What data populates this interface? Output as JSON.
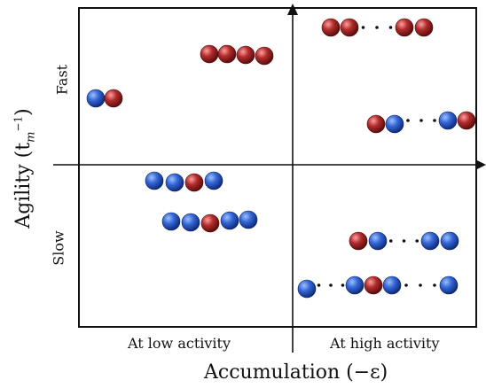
{
  "diagram": {
    "x_axis_title": "Accumulation (−ε)",
    "y_axis_title": "Agility (t",
    "y_axis_title_sub": "m",
    "y_axis_title_sup": "−1",
    "y_axis_title_close": ")",
    "x_categories": [
      "At low activity",
      "At high activity"
    ],
    "y_categories": [
      "Fast",
      "Slow"
    ],
    "colors": {
      "blue": "#2f5fd0",
      "red": "#b02a2a",
      "axis": "#111111"
    },
    "chains": [
      {
        "id": "fast-low-1",
        "quadrant": "fast-low",
        "beads": [
          "blue",
          "red"
        ]
      },
      {
        "id": "fast-low-2",
        "quadrant": "fast-low",
        "beads": [
          "red",
          "red",
          "red",
          "red"
        ]
      },
      {
        "id": "fast-high-1",
        "quadrant": "fast-high",
        "beads": [
          "red",
          "red",
          "...",
          "red",
          "red"
        ]
      },
      {
        "id": "fast-high-2",
        "quadrant": "fast-high",
        "beads": [
          "red",
          "blue",
          "...",
          "blue",
          "red"
        ]
      },
      {
        "id": "slow-low-1",
        "quadrant": "slow-low",
        "beads": [
          "blue",
          "blue",
          "red",
          "blue"
        ]
      },
      {
        "id": "slow-low-2",
        "quadrant": "slow-low",
        "beads": [
          "blue",
          "blue",
          "red",
          "blue",
          "blue"
        ]
      },
      {
        "id": "slow-high-1",
        "quadrant": "slow-high",
        "beads": [
          "red",
          "blue",
          "...",
          "blue",
          "blue"
        ]
      },
      {
        "id": "slow-high-2",
        "quadrant": "slow-high",
        "beads": [
          "blue",
          "...",
          "blue",
          "red",
          "blue",
          "...",
          "blue"
        ]
      }
    ]
  }
}
